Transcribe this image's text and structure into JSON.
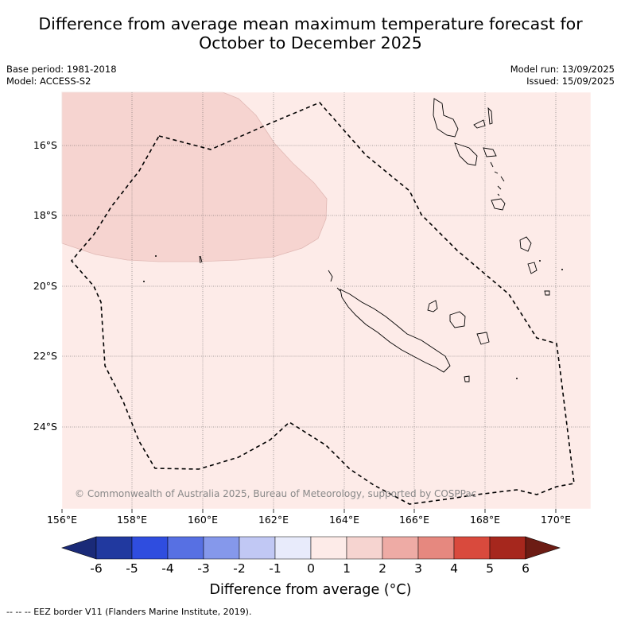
{
  "title_line1": "Difference from average mean maximum temperature forecast for",
  "title_line2": "October to December 2025",
  "base_period": "Base period: 1981-2018",
  "model": "Model: ACCESS-S2",
  "model_run": "Model run: 13/09/2025",
  "issued": "Issued: 15/09/2025",
  "lat_labels": [
    "16°S",
    "18°S",
    "20°S",
    "22°S",
    "24°S"
  ],
  "lon_labels": [
    "156°E",
    "158°E",
    "160°E",
    "162°E",
    "164°E",
    "166°E",
    "168°E",
    "170°E"
  ],
  "copyright": "© Commonwealth of Australia 2025, Bureau of Meteorology, supported by COSPPac",
  "colorbar": {
    "ticks": [
      "-6",
      "-5",
      "-4",
      "-3",
      "-2",
      "-1",
      "0",
      "1",
      "2",
      "3",
      "4",
      "5",
      "6"
    ],
    "colors": [
      "#21399f",
      "#2f4ddf",
      "#5770e3",
      "#8598eb",
      "#c1c8f4",
      "#e8ebfb",
      "#fdebe8",
      "#f6d4d0",
      "#eeaba5",
      "#e6887f",
      "#d94a3d",
      "#a6271d"
    ],
    "under_color": "#1a2a78",
    "over_color": "#6c1c14",
    "label": "Difference from average (°C)"
  },
  "legend_note": "--  --  -- EEZ border V11 (Flanders Marine Institute, 2019).",
  "map_colors": {
    "background": "#fdebe8",
    "anomaly_1_2": "#f6d4d0"
  }
}
